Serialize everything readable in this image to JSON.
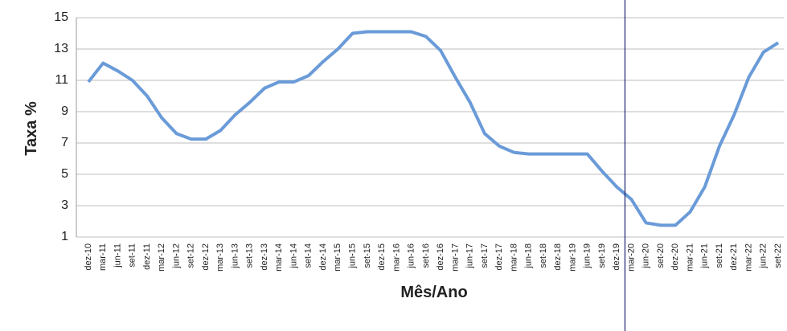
{
  "chart_data": {
    "type": "line",
    "xlabel": "Mês/Ano",
    "ylabel": "Taxa %",
    "categories": [
      "dez-10",
      "mar-11",
      "jun-11",
      "set-11",
      "dez-11",
      "mar-12",
      "jun-12",
      "set-12",
      "dez-12",
      "mar-13",
      "jun-13",
      "set-13",
      "dez-13",
      "mar-14",
      "jun-14",
      "set-14",
      "dez-14",
      "mar-15",
      "jun-15",
      "set-15",
      "dez-15",
      "mar-16",
      "jun-16",
      "set-16",
      "dez-16",
      "mar-17",
      "jun-17",
      "set-17",
      "dez-17",
      "mar-18",
      "jun-18",
      "set-18",
      "dez-18",
      "mar-19",
      "jun-19",
      "set-19",
      "dez-19",
      "mar-20",
      "jun-20",
      "set-20",
      "dez-20",
      "mar-21",
      "jun-21",
      "set-21",
      "dez-21",
      "mar-22",
      "jun-22",
      "set-22"
    ],
    "series": [
      {
        "name": "Taxa",
        "color": "#6a9bd8",
        "values": [
          10.9,
          12.1,
          11.6,
          11.0,
          10.0,
          8.6,
          7.6,
          7.25,
          7.25,
          7.8,
          8.8,
          9.6,
          10.5,
          10.9,
          10.9,
          11.3,
          12.2,
          13.0,
          14.0,
          14.1,
          14.1,
          14.1,
          14.1,
          13.8,
          12.9,
          11.2,
          9.6,
          7.6,
          6.8,
          6.4,
          6.3,
          6.3,
          6.3,
          6.3,
          6.3,
          5.2,
          4.2,
          3.4,
          1.9,
          1.75,
          1.75,
          2.6,
          4.2,
          6.8,
          8.8,
          11.2,
          12.8,
          13.4
        ]
      }
    ],
    "ylim": [
      1,
      15
    ],
    "yticks": [
      1,
      3,
      5,
      7,
      9,
      11,
      13,
      15
    ],
    "grid": true,
    "marker_line": {
      "category": "mar-20",
      "color": "#1a1f6e"
    }
  }
}
